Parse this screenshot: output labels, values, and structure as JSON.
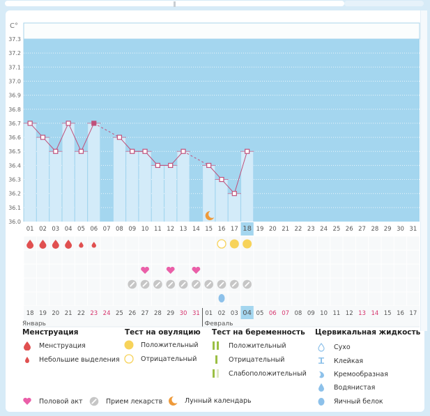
{
  "window": {
    "unit_label": "C°"
  },
  "chart_data": {
    "type": "bar",
    "title": "",
    "ylabel": "C°",
    "xlabel": "",
    "ylim": [
      36.0,
      37.3
    ],
    "yticks": [
      "37.3",
      "37.2",
      "37.1",
      "37.0",
      "36.9",
      "36.8",
      "36.7",
      "36.6",
      "36.5",
      "36.4",
      "36.3",
      "36.2",
      "36.1",
      "36.0"
    ],
    "cycle_days": [
      "01",
      "02",
      "03",
      "04",
      "05",
      "06",
      "07",
      "08",
      "09",
      "10",
      "11",
      "12",
      "13",
      "14",
      "15",
      "16",
      "17",
      "18",
      "19",
      "20",
      "21",
      "22",
      "23",
      "24",
      "25",
      "26",
      "27",
      "28",
      "29",
      "30",
      "31"
    ],
    "temperatures": [
      36.7,
      36.6,
      36.5,
      36.7,
      36.5,
      36.7,
      null,
      36.6,
      36.5,
      36.5,
      36.4,
      36.4,
      36.5,
      null,
      36.4,
      36.3,
      36.2,
      36.5,
      null,
      null,
      null,
      null,
      null,
      null,
      null,
      null,
      null,
      null,
      null,
      null,
      null
    ],
    "current_day_index": 17,
    "calendar_dates": [
      "18",
      "19",
      "20",
      "21",
      "22",
      "23",
      "24",
      "25",
      "26",
      "27",
      "28",
      "29",
      "30",
      "31",
      "01",
      "02",
      "03",
      "04",
      "05",
      "06",
      "07",
      "08",
      "09",
      "10",
      "11",
      "12",
      "13",
      "14",
      "15",
      "16",
      "17"
    ],
    "weekend_date_indices": [
      5,
      6,
      12,
      13,
      19,
      20,
      26,
      27
    ],
    "months": [
      {
        "label": "Январь",
        "start_index": 0
      },
      {
        "label": "Февраль",
        "start_index": 14
      }
    ],
    "menstruation": {
      "heavy": [
        0,
        1,
        2,
        3
      ],
      "spotting": [
        4,
        5
      ]
    },
    "ovulation_test": {
      "negative": [
        15
      ],
      "positive": [
        16,
        17
      ]
    },
    "intercourse": [
      9,
      11,
      13
    ],
    "medication": [
      8,
      9,
      10,
      11,
      12,
      13,
      14,
      15,
      16,
      17
    ],
    "cervical_fluid": {
      "egg_white": [
        15
      ]
    },
    "lunar": [
      14
    ]
  },
  "legend": {
    "menstruation": {
      "title": "Менструация",
      "items": [
        "Менструация",
        "Небольшие выделения"
      ]
    },
    "ovulation": {
      "title": "Тест на овуляцию",
      "items": [
        "Положительный",
        "Отрицательный"
      ]
    },
    "pregnancy": {
      "title": "Тест на беременность",
      "items": [
        "Положительный",
        "Отрицательный",
        "Слабоположительный"
      ]
    },
    "cervical": {
      "title": "Цервикальная жидкость",
      "items": [
        "Сухо",
        "Клейкая",
        "Кремообразная",
        "Водянистая",
        "Яичный белок"
      ]
    },
    "other": [
      "Половой акт",
      "Прием лекарств",
      "Лунный календарь"
    ]
  },
  "colors": {
    "bg_dark": "#a4d6ef",
    "bar_light": "#d3ebf9",
    "line": "#c0507a",
    "blood": "#e05050",
    "ovulation": "#f7d35a",
    "heart": "#ea5fa8",
    "pill": "#c6c6c6",
    "cervical": "#8dc1ea",
    "moon": "#ee9a3a",
    "pregnancy": "#9bbf44",
    "weekend": "#d6336c",
    "highlight": "#a4d6ef"
  }
}
